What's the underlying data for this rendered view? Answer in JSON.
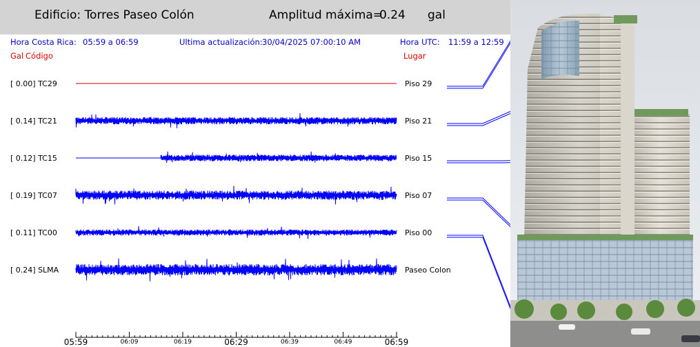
{
  "header": {
    "building_title": "Edificio: Torres Paseo Colón",
    "amplitude_label": "Amplitud máxima=",
    "amplitude_value": "0.24",
    "amplitude_unit": "gal"
  },
  "info": {
    "local_time_label": "Hora Costa Rica:",
    "local_time_range": "05:59 a 06:59",
    "update_label": "Ultima actualización:",
    "update_value": "30/04/2025 07:00:10 AM",
    "utc_label": "Hora UTC:",
    "utc_range": "11:59 a 12:59"
  },
  "columns": {
    "gal": "Gal",
    "code": "Código",
    "place": "Lugar"
  },
  "colors": {
    "trace": "#0000ff",
    "inactive_trace": "#cc0000",
    "info_text": "#0000cc",
    "column_header": "#e00000",
    "header_bg": "#d3d3d3"
  },
  "chart_data": {
    "type": "line",
    "title": "Edificio: Torres Paseo Colón",
    "xlabel": "",
    "ylabel": "",
    "x_ticks_major": [
      "05:59",
      "06:29",
      "06:59"
    ],
    "x_ticks_minor": [
      "06:09",
      "06:19",
      "06:39",
      "06:49"
    ],
    "x_tick_labels": [
      "05:59",
      "06:09",
      "06:19",
      "06:29",
      "06:39",
      "06:49",
      "06:59"
    ],
    "grid": false,
    "series": [
      {
        "label": "[  0.00] TC29",
        "code": "TC29",
        "amplitude": 0.0,
        "location": "Piso 29",
        "data_start_fraction": 0.0,
        "active": false
      },
      {
        "label": "[  0.14] TC21",
        "code": "TC21",
        "amplitude": 0.14,
        "location": "Piso 21",
        "data_start_fraction": 0.0,
        "active": true
      },
      {
        "label": "[  0.12] TC15",
        "code": "TC15",
        "amplitude": 0.12,
        "location": "Piso 15",
        "data_start_fraction": 0.265,
        "active": true
      },
      {
        "label": "[  0.19] TC07",
        "code": "TC07",
        "amplitude": 0.19,
        "location": "Piso 07",
        "data_start_fraction": 0.0,
        "active": true
      },
      {
        "label": "[  0.11] TC00",
        "code": "TC00",
        "amplitude": 0.11,
        "location": "Piso 00",
        "data_start_fraction": 0.0,
        "active": true
      },
      {
        "label": "[  0.24] SLMA",
        "code": "SLMA",
        "amplitude": 0.24,
        "location": "Paseo Colon",
        "data_start_fraction": 0.0,
        "active": true
      }
    ]
  }
}
